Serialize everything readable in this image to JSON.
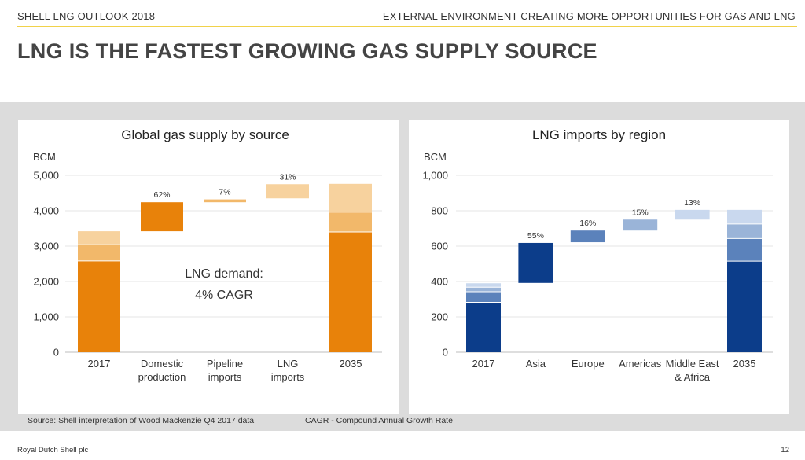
{
  "header": {
    "left": "SHELL LNG OUTLOOK 2018",
    "right": "EXTERNAL ENVIRONMENT CREATING MORE OPPORTUNITIES FOR GAS AND LNG"
  },
  "page_title": "LNG IS THE FASTEST GROWING GAS SUPPLY SOURCE",
  "colors": {
    "header_rule": "#f1d24a",
    "band": "#dcdcdc"
  },
  "chart_data": [
    {
      "type": "bar",
      "subtype": "waterfall",
      "title": "Global gas supply by source",
      "unit": "BCM",
      "ylim": [
        0,
        5000
      ],
      "yticks": [
        0,
        1000,
        2000,
        3000,
        4000,
        5000
      ],
      "ytick_labels": [
        "0",
        "1,000",
        "2,000",
        "3,000",
        "4,000",
        "5,000"
      ],
      "grid": true,
      "categories": [
        "2017",
        "Domestic production",
        "Pipeline imports",
        "LNG imports",
        "2035"
      ],
      "bars": [
        {
          "category": "2017",
          "kind": "total",
          "segments": [
            {
              "from": 0,
              "to": 2580,
              "color": "#e8820a"
            },
            {
              "from": 2580,
              "to": 3040,
              "color": "#f2b86a"
            },
            {
              "from": 3040,
              "to": 3420,
              "color": "#f7d29e"
            }
          ]
        },
        {
          "category": "Domestic production",
          "kind": "increment",
          "from": 3420,
          "to": 4240,
          "color": "#e8820a",
          "label": "62%"
        },
        {
          "category": "Pipeline imports",
          "kind": "increment",
          "from": 4240,
          "to": 4320,
          "color": "#f2b86a",
          "label": "7%"
        },
        {
          "category": "LNG imports",
          "kind": "increment",
          "from": 4350,
          "to": 4750,
          "color": "#f7d29e",
          "label": "31%"
        },
        {
          "category": "2035",
          "kind": "total",
          "segments": [
            {
              "from": 0,
              "to": 3400,
              "color": "#e8820a"
            },
            {
              "from": 3400,
              "to": 3960,
              "color": "#f2b86a"
            },
            {
              "from": 3960,
              "to": 4760,
              "color": "#f7d29e"
            }
          ]
        }
      ],
      "annotation_lines": [
        "LNG demand:",
        "4% CAGR"
      ]
    },
    {
      "type": "bar",
      "subtype": "waterfall",
      "title": "LNG imports by region",
      "unit": "BCM",
      "ylim": [
        0,
        1000
      ],
      "yticks": [
        0,
        200,
        400,
        600,
        800,
        1000
      ],
      "ytick_labels": [
        "0",
        "200",
        "400",
        "600",
        "800",
        "1,000"
      ],
      "grid": true,
      "categories": [
        "2017",
        "Asia",
        "Europe",
        "Americas",
        "Middle East & Africa",
        "2035"
      ],
      "bars": [
        {
          "category": "2017",
          "kind": "total",
          "segments": [
            {
              "from": 0,
              "to": 282,
              "color": "#0c3d8a"
            },
            {
              "from": 282,
              "to": 342,
              "color": "#5b82bb"
            },
            {
              "from": 342,
              "to": 368,
              "color": "#9ab4d8"
            },
            {
              "from": 368,
              "to": 390,
              "color": "#c9d8ee"
            }
          ]
        },
        {
          "category": "Asia",
          "kind": "increment",
          "from": 392,
          "to": 618,
          "color": "#0c3d8a",
          "label": "55%"
        },
        {
          "category": "Europe",
          "kind": "increment",
          "from": 622,
          "to": 688,
          "color": "#5b82bb",
          "label": "16%"
        },
        {
          "category": "Americas",
          "kind": "increment",
          "from": 688,
          "to": 750,
          "color": "#9ab4d8",
          "label": "15%"
        },
        {
          "category": "Middle East & Africa",
          "kind": "increment",
          "from": 750,
          "to": 805,
          "color": "#c9d8ee",
          "label": "13%"
        },
        {
          "category": "2035",
          "kind": "total",
          "segments": [
            {
              "from": 0,
              "to": 515,
              "color": "#0c3d8a"
            },
            {
              "from": 515,
              "to": 643,
              "color": "#5b82bb"
            },
            {
              "from": 643,
              "to": 725,
              "color": "#9ab4d8"
            },
            {
              "from": 725,
              "to": 805,
              "color": "#c9d8ee"
            }
          ]
        }
      ]
    }
  ],
  "footnotes": {
    "source": "Source: Shell interpretation of Wood Mackenzie Q4 2017 data",
    "cagr": "CAGR - Compound Annual Growth Rate"
  },
  "footer": {
    "company": "Royal Dutch Shell plc",
    "page_number": "12"
  }
}
